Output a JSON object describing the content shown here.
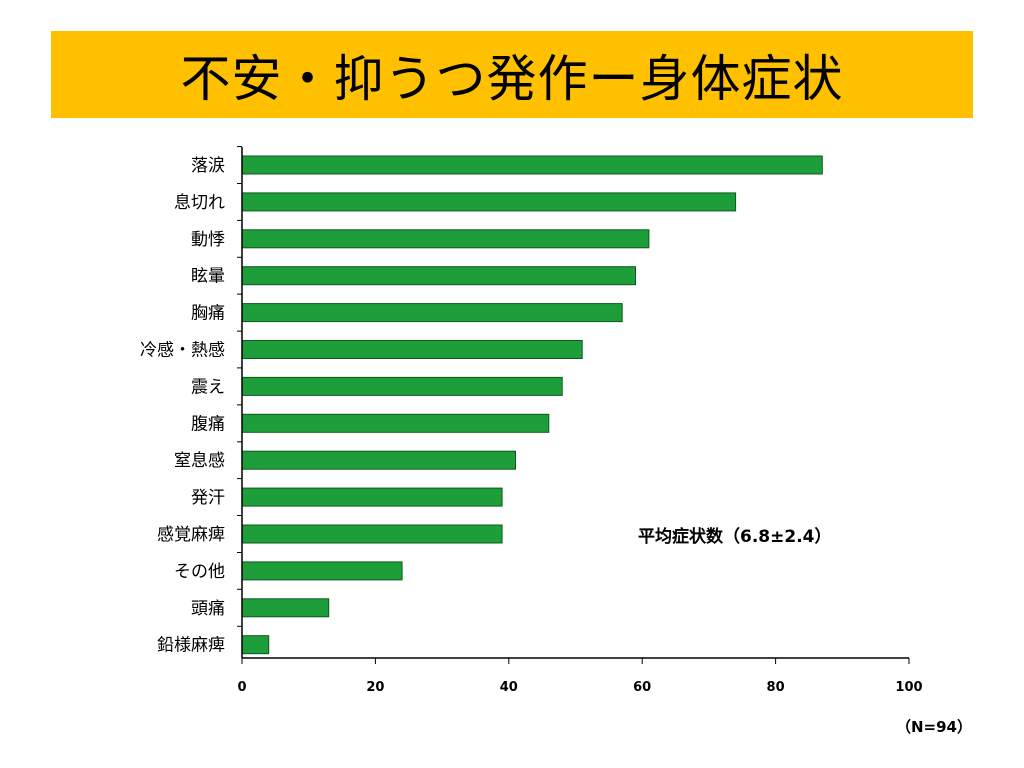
{
  "header": {
    "title": "不安・抑うつ発作ー身体症状"
  },
  "footer": {
    "sample_size": "（N=94）"
  },
  "colors": {
    "title_band": "#FFC000",
    "bar_fill": "#1E9E3A",
    "bar_stroke": "#0B5A1E"
  },
  "chart_data": {
    "type": "bar",
    "orientation": "horizontal",
    "categories": [
      "落涙",
      "息切れ",
      "動悸",
      "眩暈",
      "胸痛",
      "冷感・熱感",
      "震え",
      "腹痛",
      "窒息感",
      "発汗",
      "感覚麻痺",
      "その他",
      "頭痛",
      "鉛様麻痺"
    ],
    "values": [
      87,
      74,
      61,
      59,
      57,
      51,
      48,
      46,
      41,
      39,
      39,
      24,
      13,
      4
    ],
    "xlim": [
      0,
      100
    ],
    "xticks": [
      0,
      20,
      40,
      60,
      80,
      100
    ],
    "annotation": "平均症状数（6.8±2.4）",
    "grid": false
  }
}
